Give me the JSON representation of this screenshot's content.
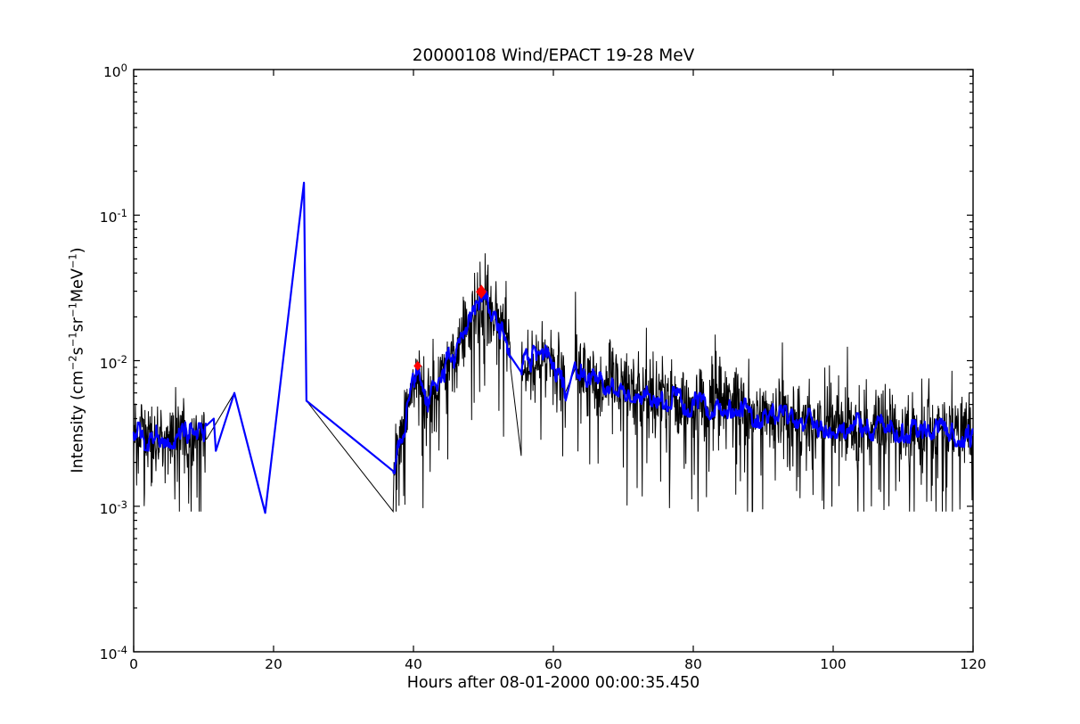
{
  "chart_data": {
    "type": "line",
    "title": "20000108 Wind/EPACT 19-28 MeV",
    "xlabel": "Hours after 08-01-2000 00:00:35.450",
    "ylabel": "Intensity (cm^{−2}s^{−1}sr^{−1}MeV^{−1})",
    "yscale": "log",
    "xlim": [
      0,
      120
    ],
    "ylim": [
      0.0001,
      1
    ],
    "x_ticks": [
      0,
      20,
      40,
      60,
      80,
      100,
      120
    ],
    "y_tick_exponents": [
      0,
      -1,
      -2,
      -3,
      -4
    ],
    "grid": false,
    "legend": "none",
    "colors": {
      "raw_series": "#000000",
      "smoothed_series": "#0000ff",
      "onset_markers": "#ff0000",
      "axes": "#000000",
      "background": "#ffffff"
    },
    "series_names": {
      "raw": "raw intensity (black)",
      "smoothed": "smoothed intensity (blue)"
    },
    "noise_regions": [
      [
        0,
        10.45
      ],
      [
        37.1,
        53.9
      ],
      [
        55.4,
        61.8
      ],
      [
        63.1,
        120
      ]
    ],
    "gap_paths": {
      "after_region": 0,
      "black": [
        [
          14.4,
          0.006
        ],
        [
          18.8,
          0.0009
        ],
        [
          24.35,
          0.167
        ],
        [
          24.7,
          0.0053
        ]
      ],
      "blue": [
        [
          11.45,
          0.004
        ],
        [
          11.75,
          0.0024
        ],
        [
          14.4,
          0.006
        ],
        [
          18.8,
          0.0009
        ],
        [
          24.35,
          0.167
        ],
        [
          24.7,
          0.0053
        ]
      ]
    },
    "center_keypoints": [
      [
        0,
        0.0031
      ],
      [
        3,
        0.0029
      ],
      [
        6,
        0.0031
      ],
      [
        10.45,
        0.003
      ],
      [
        37.1,
        0.00175
      ],
      [
        37.7,
        0.0028
      ],
      [
        38.6,
        0.0036
      ],
      [
        39.3,
        0.0044
      ],
      [
        40.0,
        0.007
      ],
      [
        40.8,
        0.0092
      ],
      [
        41.3,
        0.0065
      ],
      [
        41.9,
        0.0046
      ],
      [
        42.6,
        0.006
      ],
      [
        43.4,
        0.0055
      ],
      [
        44.2,
        0.008
      ],
      [
        45.0,
        0.01
      ],
      [
        45.8,
        0.0092
      ],
      [
        46.6,
        0.012
      ],
      [
        47.4,
        0.0145
      ],
      [
        48.2,
        0.018
      ],
      [
        49.0,
        0.021
      ],
      [
        49.8,
        0.0245
      ],
      [
        50.3,
        0.026
      ],
      [
        51.0,
        0.023
      ],
      [
        51.8,
        0.0195
      ],
      [
        52.6,
        0.0165
      ],
      [
        53.9,
        0.0127
      ],
      [
        55.4,
        0.008
      ],
      [
        56.2,
        0.01
      ],
      [
        57.0,
        0.0105
      ],
      [
        58.0,
        0.0092
      ],
      [
        59.0,
        0.0105
      ],
      [
        60.0,
        0.0095
      ],
      [
        60.8,
        0.0082
      ],
      [
        61.8,
        0.006
      ],
      [
        63.1,
        0.01
      ],
      [
        64.0,
        0.0085
      ],
      [
        65.5,
        0.0078
      ],
      [
        67,
        0.007
      ],
      [
        68.5,
        0.0075
      ],
      [
        70,
        0.0066
      ],
      [
        72,
        0.0063
      ],
      [
        74,
        0.006
      ],
      [
        76,
        0.0056
      ],
      [
        78,
        0.0052
      ],
      [
        80,
        0.005
      ],
      [
        82,
        0.0047
      ],
      [
        83.5,
        0.0054
      ],
      [
        85,
        0.0049
      ],
      [
        86.5,
        0.0052
      ],
      [
        88,
        0.0044
      ],
      [
        90,
        0.0042
      ],
      [
        92.5,
        0.004
      ],
      [
        95,
        0.0039
      ],
      [
        98,
        0.0037
      ],
      [
        101,
        0.0036
      ],
      [
        105,
        0.0035
      ],
      [
        109,
        0.0034
      ],
      [
        113,
        0.0033
      ],
      [
        117,
        0.0032
      ],
      [
        120,
        0.0031
      ]
    ],
    "markers": [
      {
        "x": 40.6,
        "y": 0.0092,
        "rx": 4.5,
        "ry": 5.5
      },
      {
        "x": 49.7,
        "y": 0.0297,
        "rx": 6.0,
        "ry": 8.0
      }
    ],
    "noise": {
      "seed": 42,
      "step_h": 0.06,
      "sigma": 0.12,
      "floor": 0.00092,
      "down_p": 0.09,
      "down_extra": [
        0.25,
        0.65
      ],
      "up_p": 0.05,
      "up_extra": [
        0.12,
        0.32
      ],
      "blue_walk": 0.028,
      "blue_decay": 0.96,
      "blue_clamp": 0.09
    }
  }
}
